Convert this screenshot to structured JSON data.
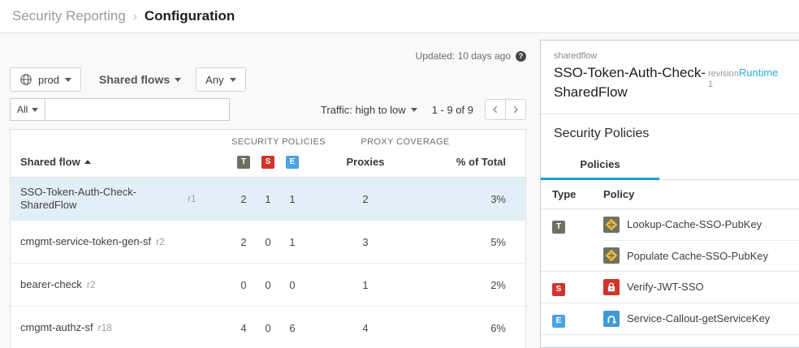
{
  "breadcrumb": {
    "parent": "Security Reporting",
    "separator": "›",
    "current": "Configuration"
  },
  "toolbar": {
    "updated": "Updated: 10 days ago",
    "help_glyph": "?",
    "env_label": "prod",
    "type_dropdown_label": "Shared flows",
    "any_label": "Any",
    "all_label": "All",
    "search_value": "",
    "sort_label": "Traffic: high to low",
    "range": "1 - 9 of 9"
  },
  "table": {
    "group_headers": {
      "security": "SECURITY POLICIES",
      "coverage": "PROXY COVERAGE"
    },
    "columns": {
      "name": "Shared flow",
      "badges": [
        "T",
        "S",
        "E"
      ],
      "proxies": "Proxies",
      "pct": "% of Total"
    },
    "rows": [
      {
        "name": "SSO-Token-Auth-Check-SharedFlow",
        "revision": "r1",
        "t": "2",
        "s": "1",
        "e": "1",
        "proxies": "2",
        "pct": "3%",
        "selected": true
      },
      {
        "name": "cmgmt-service-token-gen-sf",
        "revision": "r2",
        "t": "2",
        "s": "0",
        "e": "1",
        "proxies": "3",
        "pct": "5%",
        "selected": false
      },
      {
        "name": "bearer-check",
        "revision": "r2",
        "t": "0",
        "s": "0",
        "e": "0",
        "proxies": "1",
        "pct": "2%",
        "selected": false
      },
      {
        "name": "cmgmt-authz-sf",
        "revision": "r18",
        "t": "4",
        "s": "0",
        "e": "6",
        "proxies": "4",
        "pct": "6%",
        "selected": false
      }
    ]
  },
  "detail": {
    "kind": "sharedflow",
    "title": "SSO-Token-Auth-Check-SharedFlow",
    "revision_label": "revision",
    "revision_value": "1",
    "runtime_link": "Runtime",
    "section_title": "Security Policies",
    "tab_label": "Policies",
    "policy_columns": {
      "type": "Type",
      "policy": "Policy"
    },
    "policy_groups": [
      {
        "type": "T",
        "policies": [
          {
            "icon": "cache-icon",
            "name": "Lookup-Cache-SSO-PubKey"
          },
          {
            "icon": "cache-icon",
            "name": "Populate Cache-SSO-PubKey"
          }
        ]
      },
      {
        "type": "S",
        "policies": [
          {
            "icon": "lock-icon",
            "name": "Verify-JWT-SSO"
          }
        ]
      },
      {
        "type": "E",
        "policies": [
          {
            "icon": "callout-icon",
            "name": "Service-Callout-getServiceKey"
          }
        ]
      }
    ]
  },
  "colors": {
    "accent_blue": "#1b9ed9",
    "link_blue": "#2baae2",
    "traffic_badge": "#6b7261",
    "security_badge": "#d1342a",
    "extension_badge": "#4aa4e0",
    "selected_row_bg": "#e3eff7"
  }
}
